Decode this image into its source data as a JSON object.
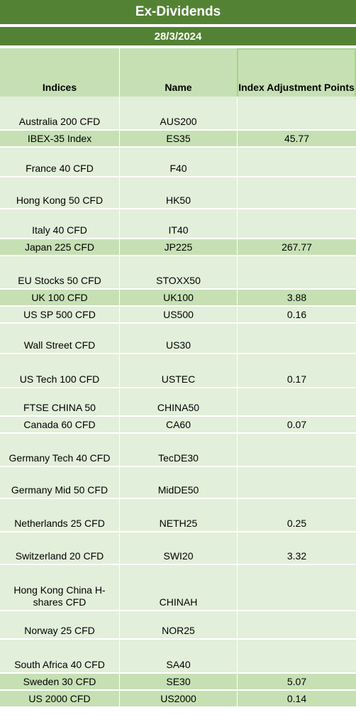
{
  "title": "Ex-Dividends",
  "date": "28/3/2024",
  "headers": {
    "indices": "Indices",
    "name": "Name",
    "adjustment": "Index Adjustment Points"
  },
  "rows": [
    {
      "index": "Australia 200 CFD",
      "name": "AUS200",
      "points": ""
    },
    {
      "index": "IBEX-35 Index",
      "name": "ES35",
      "points": "45.77"
    },
    {
      "index": "France 40 CFD",
      "name": "F40",
      "points": ""
    },
    {
      "index": "Hong Kong 50 CFD",
      "name": "HK50",
      "points": ""
    },
    {
      "index": "Italy 40 CFD",
      "name": "IT40",
      "points": ""
    },
    {
      "index": "Japan 225 CFD",
      "name": "JP225",
      "points": "267.77"
    },
    {
      "index": "EU Stocks 50 CFD",
      "name": "STOXX50",
      "points": ""
    },
    {
      "index": "UK 100 CFD",
      "name": "UK100",
      "points": "3.88"
    },
    {
      "index": "US SP 500 CFD",
      "name": "US500",
      "points": "0.16"
    },
    {
      "index": "Wall Street CFD",
      "name": "US30",
      "points": ""
    },
    {
      "index": "US Tech 100 CFD",
      "name": "USTEC",
      "points": "0.17"
    },
    {
      "index": "FTSE CHINA 50",
      "name": "CHINA50",
      "points": ""
    },
    {
      "index": "Canada 60 CFD",
      "name": "CA60",
      "points": "0.07"
    },
    {
      "index": "Germany Tech 40 CFD",
      "name": "TecDE30",
      "points": ""
    },
    {
      "index": "Germany Mid 50 CFD",
      "name": "MidDE50",
      "points": ""
    },
    {
      "index": "Netherlands 25 CFD",
      "name": "NETH25",
      "points": "0.25"
    },
    {
      "index": "Switzerland 20 CFD",
      "name": "SWI20",
      "points": "3.32"
    },
    {
      "index": "Hong Kong China H-shares CFD",
      "name": "CHINAH",
      "points": ""
    },
    {
      "index": "Norway 25 CFD",
      "name": "NOR25",
      "points": ""
    },
    {
      "index": "South Africa 40 CFD",
      "name": "SA40",
      "points": ""
    },
    {
      "index": "Sweden 30 CFD",
      "name": "SE30",
      "points": "5.07"
    },
    {
      "index": "US 2000 CFD",
      "name": "US2000",
      "points": "0.14"
    }
  ]
}
